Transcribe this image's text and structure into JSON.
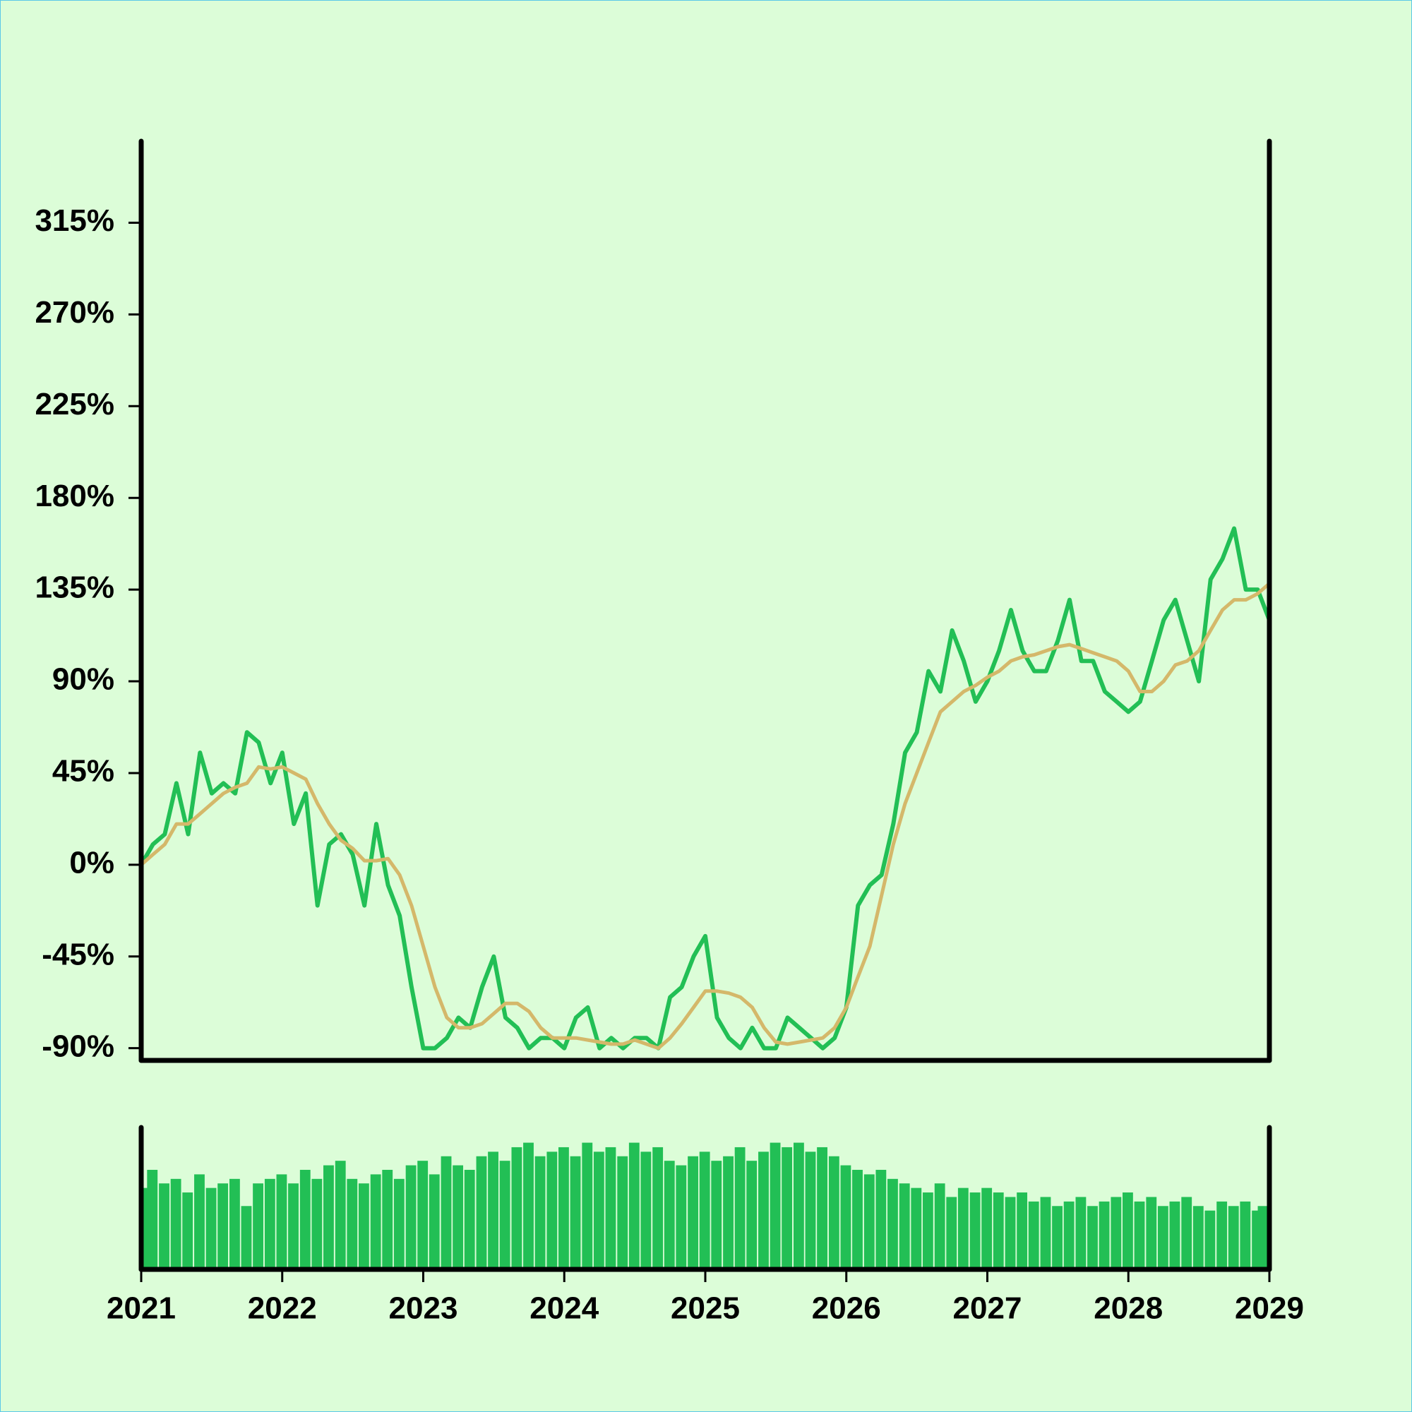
{
  "chart_data": {
    "type": "line",
    "x": [
      2021,
      2021.083,
      2021.167,
      2021.25,
      2021.333,
      2021.417,
      2021.5,
      2021.583,
      2021.667,
      2021.75,
      2021.833,
      2021.917,
      2022,
      2022.083,
      2022.167,
      2022.25,
      2022.333,
      2022.417,
      2022.5,
      2022.583,
      2022.667,
      2022.75,
      2022.833,
      2022.917,
      2023,
      2023.083,
      2023.167,
      2023.25,
      2023.333,
      2023.417,
      2023.5,
      2023.583,
      2023.667,
      2023.75,
      2023.833,
      2023.917,
      2024,
      2024.083,
      2024.167,
      2024.25,
      2024.333,
      2024.417,
      2024.5,
      2024.583,
      2024.667,
      2024.75,
      2024.833,
      2024.917,
      2025,
      2025.083,
      2025.167,
      2025.25,
      2025.333,
      2025.417,
      2025.5,
      2025.583,
      2025.667,
      2025.75,
      2025.833,
      2025.917,
      2026,
      2026.083,
      2026.167,
      2026.25,
      2026.333,
      2026.417,
      2026.5,
      2026.583,
      2026.667,
      2026.75,
      2026.833,
      2026.917,
      2027,
      2027.083,
      2027.167,
      2027.25,
      2027.333,
      2027.417,
      2027.5,
      2027.583,
      2027.667,
      2027.75,
      2027.833,
      2027.917,
      2028,
      2028.083,
      2028.167,
      2028.25,
      2028.333,
      2028.417,
      2028.5,
      2028.583,
      2028.667,
      2028.75,
      2028.833,
      2028.917,
      2029
    ],
    "series": [
      {
        "color": "#22bf55",
        "values": [
          0,
          10,
          15,
          40,
          15,
          55,
          35,
          40,
          35,
          65,
          60,
          40,
          55,
          20,
          35,
          -20,
          10,
          15,
          5,
          -20,
          20,
          -10,
          -25,
          -60,
          -90,
          -90,
          -85,
          -75,
          -80,
          -60,
          -45,
          -75,
          -80,
          -90,
          -85,
          -85,
          -90,
          -75,
          -70,
          -90,
          -85,
          -90,
          -85,
          -85,
          -90,
          -65,
          -60,
          -45,
          -35,
          -75,
          -85,
          -90,
          -80,
          -90,
          -90,
          -75,
          -80,
          -85,
          -90,
          -85,
          -70,
          -20,
          -10,
          -5,
          20,
          55,
          65,
          95,
          85,
          115,
          100,
          80,
          90,
          105,
          125,
          105,
          95,
          95,
          110,
          130,
          100,
          100,
          85,
          80,
          75,
          80,
          100,
          120,
          130,
          110,
          90,
          140,
          150,
          165,
          135,
          135,
          120
        ]
      },
      {
        "color": "#d4b86a",
        "values": [
          0,
          5,
          10,
          20,
          20,
          25,
          30,
          35,
          38,
          40,
          48,
          47,
          48,
          45,
          42,
          30,
          20,
          12,
          8,
          2,
          2,
          3,
          -5,
          -20,
          -40,
          -60,
          -75,
          -80,
          -80,
          -78,
          -73,
          -68,
          -68,
          -72,
          -80,
          -85,
          -85,
          -85,
          -86,
          -87,
          -88,
          -88,
          -86,
          -88,
          -90,
          -85,
          -78,
          -70,
          -62,
          -62,
          -63,
          -65,
          -70,
          -80,
          -87,
          -88,
          -87,
          -86,
          -85,
          -80,
          -70,
          -55,
          -40,
          -15,
          10,
          30,
          45,
          60,
          75,
          80,
          85,
          88,
          92,
          95,
          100,
          102,
          103,
          105,
          107,
          108,
          106,
          104,
          102,
          100,
          95,
          85,
          85,
          90,
          98,
          100,
          105,
          115,
          125,
          130,
          130,
          133,
          138
        ]
      }
    ],
    "volume": {
      "color": "#22bf55",
      "values": [
        90,
        110,
        95,
        100,
        85,
        105,
        90,
        95,
        100,
        70,
        95,
        100,
        105,
        95,
        110,
        100,
        115,
        120,
        100,
        95,
        105,
        110,
        100,
        115,
        120,
        105,
        125,
        115,
        110,
        125,
        130,
        120,
        135,
        140,
        125,
        130,
        135,
        125,
        140,
        130,
        135,
        125,
        140,
        130,
        135,
        120,
        115,
        125,
        130,
        120,
        125,
        135,
        120,
        130,
        140,
        135,
        140,
        130,
        135,
        125,
        115,
        110,
        105,
        110,
        100,
        95,
        90,
        85,
        95,
        80,
        90,
        85,
        90,
        85,
        80,
        85,
        75,
        80,
        70,
        75,
        80,
        70,
        75,
        80,
        85,
        75,
        80,
        70,
        75,
        80,
        70,
        65,
        75,
        70,
        75,
        65,
        70
      ]
    },
    "ylim": [
      -96,
      355
    ],
    "yticks": [
      {
        "value": -90,
        "label": "-90%"
      },
      {
        "value": -45,
        "label": "-45%"
      },
      {
        "value": 0,
        "label": "0%"
      },
      {
        "value": 45,
        "label": "45%"
      },
      {
        "value": 90,
        "label": "90%"
      },
      {
        "value": 135,
        "label": "135%"
      },
      {
        "value": 180,
        "label": "180%"
      },
      {
        "value": 225,
        "label": "225%"
      },
      {
        "value": 270,
        "label": "270%"
      },
      {
        "value": 315,
        "label": "315%"
      }
    ],
    "xlim": [
      2021,
      2029
    ],
    "xticks": [
      2021,
      2022,
      2023,
      2024,
      2025,
      2026,
      2027,
      2028,
      2029
    ]
  }
}
